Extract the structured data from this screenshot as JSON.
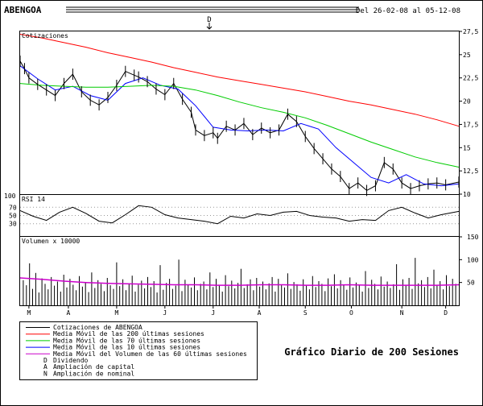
{
  "header": {
    "ticker": "ABENGOA",
    "date_range": "Del 26-02-08 al 05-12-08",
    "dividend_marker": "D"
  },
  "footer": {
    "subtitle": "Gráfico Diario de 200 Sesiones"
  },
  "legend": {
    "items": [
      {
        "symbol": "line",
        "color": "#000000",
        "label": "Cotizaciones de ABENGOA"
      },
      {
        "symbol": "line",
        "color": "#ff0000",
        "label": "Media Móvil de las 200 últimas sesiones"
      },
      {
        "symbol": "line",
        "color": "#00cc00",
        "label": "Media Móvil de las 70 últimas sesiones"
      },
      {
        "symbol": "line",
        "color": "#0000ff",
        "label": "Media Móvil de las 10 últimas sesiones"
      },
      {
        "symbol": "line",
        "color": "#cc00cc",
        "label": "Media Móvil del Volumen de las 60 últimas sesiones"
      },
      {
        "symbol": "D",
        "color": "#000000",
        "label": "Dividendo"
      },
      {
        "symbol": "A",
        "color": "#000000",
        "label": "Ampliación de capital"
      },
      {
        "symbol": "N",
        "color": "#000000",
        "label": "Ampliación de nominal"
      }
    ]
  },
  "chart_data": [
    {
      "type": "line",
      "title": "Cotizaciones",
      "y_ticks": [
        10,
        12.5,
        15,
        17.5,
        20,
        22.5,
        25,
        27.5
      ],
      "y_tick_labels": [
        "10",
        "12,5",
        "15",
        "17,5",
        "20",
        "22,5",
        "25",
        "27,5"
      ],
      "ylim": [
        10,
        27.5
      ],
      "x_tick_labels": [
        "M",
        "A",
        "M",
        "J",
        "J",
        "A",
        "S",
        "O",
        "N",
        "D"
      ],
      "x_tick_positions": [
        0.02,
        0.11,
        0.22,
        0.33,
        0.44,
        0.545,
        0.65,
        0.755,
        0.87,
        0.97
      ],
      "series": [
        {
          "name": "Cotizaciones de ABENGOA",
          "color": "#000000",
          "x": [
            0,
            0.01,
            0.02,
            0.04,
            0.06,
            0.08,
            0.1,
            0.12,
            0.14,
            0.16,
            0.18,
            0.2,
            0.22,
            0.24,
            0.26,
            0.27,
            0.29,
            0.31,
            0.33,
            0.35,
            0.37,
            0.39,
            0.4,
            0.42,
            0.44,
            0.45,
            0.47,
            0.49,
            0.51,
            0.53,
            0.55,
            0.57,
            0.59,
            0.61,
            0.63,
            0.65,
            0.67,
            0.69,
            0.71,
            0.73,
            0.75,
            0.77,
            0.79,
            0.81,
            0.83,
            0.85,
            0.87,
            0.89,
            0.91,
            0.93,
            0.95,
            0.97,
            1.0
          ],
          "values": [
            24.3,
            23.5,
            22.5,
            21.8,
            21.2,
            20.6,
            21.9,
            22.9,
            21.0,
            20.1,
            19.6,
            20.4,
            21.7,
            23.2,
            22.8,
            22.6,
            22.1,
            21.3,
            20.7,
            21.9,
            20.2,
            18.8,
            16.9,
            16.3,
            16.6,
            16.0,
            17.3,
            16.9,
            17.6,
            16.4,
            17.1,
            16.6,
            16.9,
            18.6,
            17.8,
            16.2,
            14.9,
            13.8,
            12.7,
            11.9,
            10.6,
            11.2,
            10.4,
            10.9,
            13.4,
            12.7,
            11.2,
            10.6,
            10.9,
            11.1,
            11.2,
            11.0,
            11.3
          ]
        },
        {
          "name": "Media Móvil de las 10 últimas sesiones",
          "color": "#0000ff",
          "x": [
            0,
            0.04,
            0.08,
            0.12,
            0.16,
            0.2,
            0.24,
            0.28,
            0.32,
            0.36,
            0.4,
            0.44,
            0.48,
            0.52,
            0.56,
            0.6,
            0.64,
            0.68,
            0.72,
            0.76,
            0.8,
            0.84,
            0.88,
            0.92,
            0.96,
            1.0
          ],
          "values": [
            23.8,
            22.4,
            21.2,
            21.6,
            20.6,
            20.1,
            21.9,
            22.5,
            21.7,
            21.3,
            19.5,
            17.2,
            16.9,
            16.8,
            16.9,
            16.8,
            17.6,
            17.0,
            15.0,
            13.4,
            11.8,
            11.2,
            12.1,
            11.1,
            10.9,
            11.1
          ]
        },
        {
          "name": "Media Móvil de las 70 últimas sesiones",
          "color": "#00cc00",
          "x": [
            0,
            0.05,
            0.1,
            0.15,
            0.2,
            0.25,
            0.3,
            0.35,
            0.4,
            0.45,
            0.5,
            0.55,
            0.6,
            0.65,
            0.7,
            0.75,
            0.8,
            0.85,
            0.9,
            0.95,
            1.0
          ],
          "values": [
            21.9,
            21.7,
            21.6,
            21.5,
            21.5,
            21.6,
            21.7,
            21.6,
            21.2,
            20.6,
            19.9,
            19.3,
            18.8,
            18.2,
            17.4,
            16.5,
            15.6,
            14.8,
            14.0,
            13.4,
            12.9
          ]
        },
        {
          "name": "Media Móvil de las 200 últimas sesiones",
          "color": "#ff0000",
          "x": [
            0,
            0.05,
            0.1,
            0.15,
            0.2,
            0.25,
            0.3,
            0.35,
            0.4,
            0.45,
            0.5,
            0.55,
            0.6,
            0.65,
            0.7,
            0.75,
            0.8,
            0.85,
            0.9,
            0.95,
            1.0
          ],
          "values": [
            27.2,
            26.8,
            26.3,
            25.8,
            25.2,
            24.7,
            24.2,
            23.6,
            23.1,
            22.6,
            22.2,
            21.8,
            21.4,
            21.0,
            20.5,
            20.0,
            19.6,
            19.1,
            18.6,
            18.0,
            17.3
          ]
        }
      ]
    },
    {
      "type": "line",
      "title": "RSI 14",
      "y_ticks": [
        30,
        50,
        70
      ],
      "ylim": [
        0,
        100
      ],
      "top_label": "100",
      "series": [
        {
          "name": "RSI 14",
          "color": "#000000",
          "x": [
            0,
            0.03,
            0.06,
            0.09,
            0.12,
            0.15,
            0.18,
            0.21,
            0.24,
            0.27,
            0.3,
            0.33,
            0.36,
            0.39,
            0.42,
            0.45,
            0.48,
            0.51,
            0.54,
            0.57,
            0.6,
            0.63,
            0.66,
            0.69,
            0.72,
            0.75,
            0.78,
            0.81,
            0.84,
            0.87,
            0.9,
            0.93,
            0.96,
            1.0
          ],
          "values": [
            62,
            48,
            38,
            58,
            70,
            55,
            36,
            32,
            52,
            74,
            70,
            52,
            44,
            40,
            36,
            30,
            48,
            44,
            54,
            50,
            58,
            60,
            50,
            46,
            44,
            36,
            40,
            38,
            62,
            70,
            56,
            44,
            52,
            60
          ]
        }
      ]
    },
    {
      "type": "bar",
      "title": "Volumen x 10000",
      "y_ticks": [
        50,
        100,
        150
      ],
      "ylim": [
        0,
        150
      ],
      "series": [
        {
          "name": "Volumen x 10000",
          "color": "#000000",
          "values": [
            55,
            44,
            92,
            36,
            71,
            28,
            59,
            47,
            35,
            62,
            43,
            52,
            30,
            67,
            39,
            58,
            45,
            33,
            64,
            41,
            50,
            29,
            72,
            38,
            55,
            47,
            31,
            60,
            44,
            36,
            94,
            42,
            57,
            33,
            48,
            65,
            30,
            45,
            54,
            37,
            62,
            40,
            53,
            28,
            88,
            34,
            49,
            58,
            36,
            43,
            100,
            31,
            56,
            45,
            39,
            61,
            33,
            47,
            52,
            35,
            72,
            40,
            58,
            44,
            30,
            66,
            42,
            54,
            37,
            49,
            80,
            38,
            46,
            57,
            33,
            60,
            41,
            52,
            35,
            48,
            62,
            30,
            58,
            44,
            39,
            70,
            36,
            51,
            46,
            32,
            57,
            43,
            35,
            64,
            40,
            53,
            47,
            31,
            59,
            42,
            68,
            37,
            55,
            45,
            34,
            61,
            39,
            50,
            44,
            30,
            75,
            38,
            56,
            47,
            35,
            63,
            41,
            52,
            38,
            46,
            90,
            34,
            57,
            43,
            60,
            36,
            104,
            48,
            55,
            40,
            62,
            37,
            78,
            45,
            53,
            35,
            66,
            42,
            58,
            47
          ]
        },
        {
          "name": "Media Móvil del Volumen de las 60 últimas sesiones",
          "color": "#cc00cc",
          "x": [
            0,
            0.05,
            0.1,
            0.15,
            0.2,
            0.25,
            0.3,
            0.35,
            0.4,
            0.45,
            0.5,
            0.55,
            0.6,
            0.65,
            0.7,
            0.75,
            0.8,
            0.85,
            0.9,
            0.95,
            1.0
          ],
          "values": [
            60,
            57,
            53,
            50,
            48,
            47,
            46,
            45,
            45,
            44,
            44,
            45,
            45,
            44,
            44,
            45,
            44,
            44,
            44,
            44,
            45
          ]
        }
      ]
    }
  ]
}
